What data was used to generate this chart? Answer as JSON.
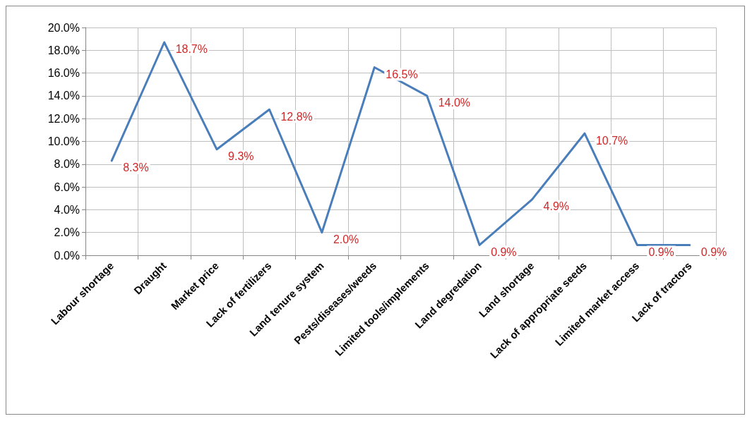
{
  "chart_data": {
    "type": "line",
    "categories": [
      "Labour shortage",
      "Draught",
      "Market price",
      "Lack of fertilizers",
      "Land tenure system",
      "Pests/diseases/weeds",
      "Limited tools/implements",
      "Land degredation",
      "Land shortage",
      "Lack of appropriate seeds",
      "Limited market access",
      "Lack of tractors"
    ],
    "series": [
      {
        "color": "#4a7ebb",
        "values": [
          8.3,
          18.7,
          9.3,
          12.8,
          2.0,
          16.5,
          14.0,
          0.9,
          4.9,
          10.7,
          0.9,
          0.9
        ],
        "value_labels": [
          "8.3%",
          "18.7%",
          "9.3%",
          "12.8%",
          "2.0%",
          "16.5%",
          "14.0%",
          "0.9%",
          "4.9%",
          "10.7%",
          "0.9%",
          "0.9%"
        ]
      }
    ],
    "ylim": [
      0,
      20
    ],
    "yticks": [
      {
        "value": 0,
        "label": "0.0%"
      },
      {
        "value": 2,
        "label": "2.0%"
      },
      {
        "value": 4,
        "label": "4.0%"
      },
      {
        "value": 6,
        "label": "6.0%"
      },
      {
        "value": 8,
        "label": "8.0%"
      },
      {
        "value": 10,
        "label": "10.0%"
      },
      {
        "value": 12,
        "label": "12.0%"
      },
      {
        "value": 14,
        "label": "14.0%"
      },
      {
        "value": 16,
        "label": "16.0%"
      },
      {
        "value": 18,
        "label": "18.0%"
      },
      {
        "value": 20,
        "label": "20.0%"
      }
    ],
    "grid": true,
    "marker": "none",
    "line_style": "solid"
  }
}
